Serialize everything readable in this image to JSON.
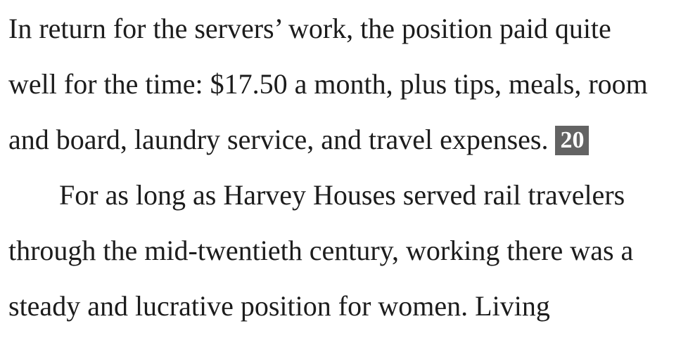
{
  "text": {
    "lines": [
      "In return for the servers’ work, the position paid quite",
      "well for the time: $17.50 a month, plus tips, meals, room",
      "and board, laundry service, and travel expenses.",
      "For as long as Harvey Houses served rail travelers",
      "through the mid-twentieth century, working there was a",
      "steady and lucrative position for women. Living"
    ],
    "footnote_marker": "20"
  }
}
